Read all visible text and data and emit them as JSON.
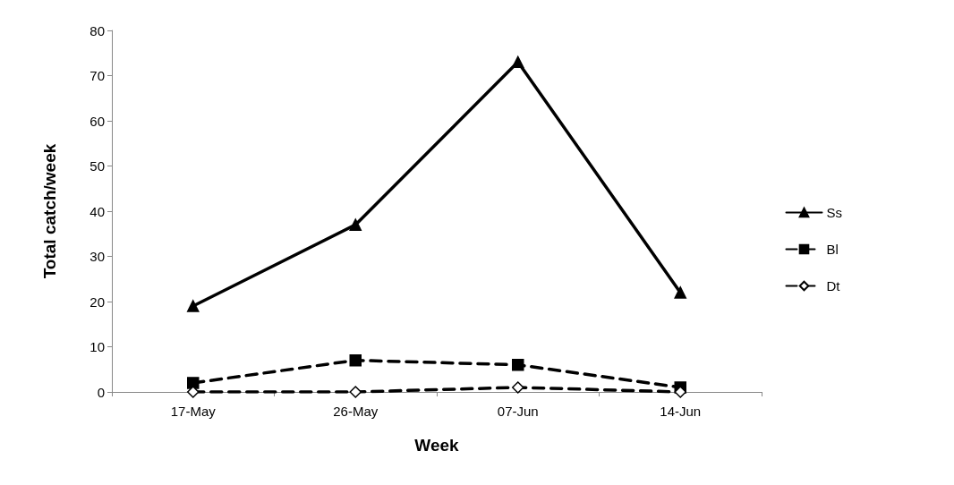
{
  "chart_data": {
    "type": "line",
    "xlabel": "Week",
    "ylabel": "Total catch/week",
    "categories": [
      "17-May",
      "26-May",
      "07-Jun",
      "14-Jun"
    ],
    "series": [
      {
        "name": "Ss",
        "color": "#000000",
        "values": [
          19,
          37,
          73,
          22
        ],
        "marker": "triangle",
        "line_style": "solid"
      },
      {
        "name": "Bl",
        "color": "#000000",
        "values": [
          2,
          7,
          6,
          1
        ],
        "marker": "square",
        "line_style": "dashed"
      },
      {
        "name": "Dt",
        "color": "#000000",
        "values": [
          0,
          0,
          1,
          0
        ],
        "marker": "diamond",
        "line_style": "dashed"
      }
    ],
    "ylim": [
      0,
      80
    ],
    "yticks": [
      0,
      10,
      20,
      30,
      40,
      50,
      60,
      70,
      80
    ],
    "grid": false,
    "legend": "right"
  }
}
